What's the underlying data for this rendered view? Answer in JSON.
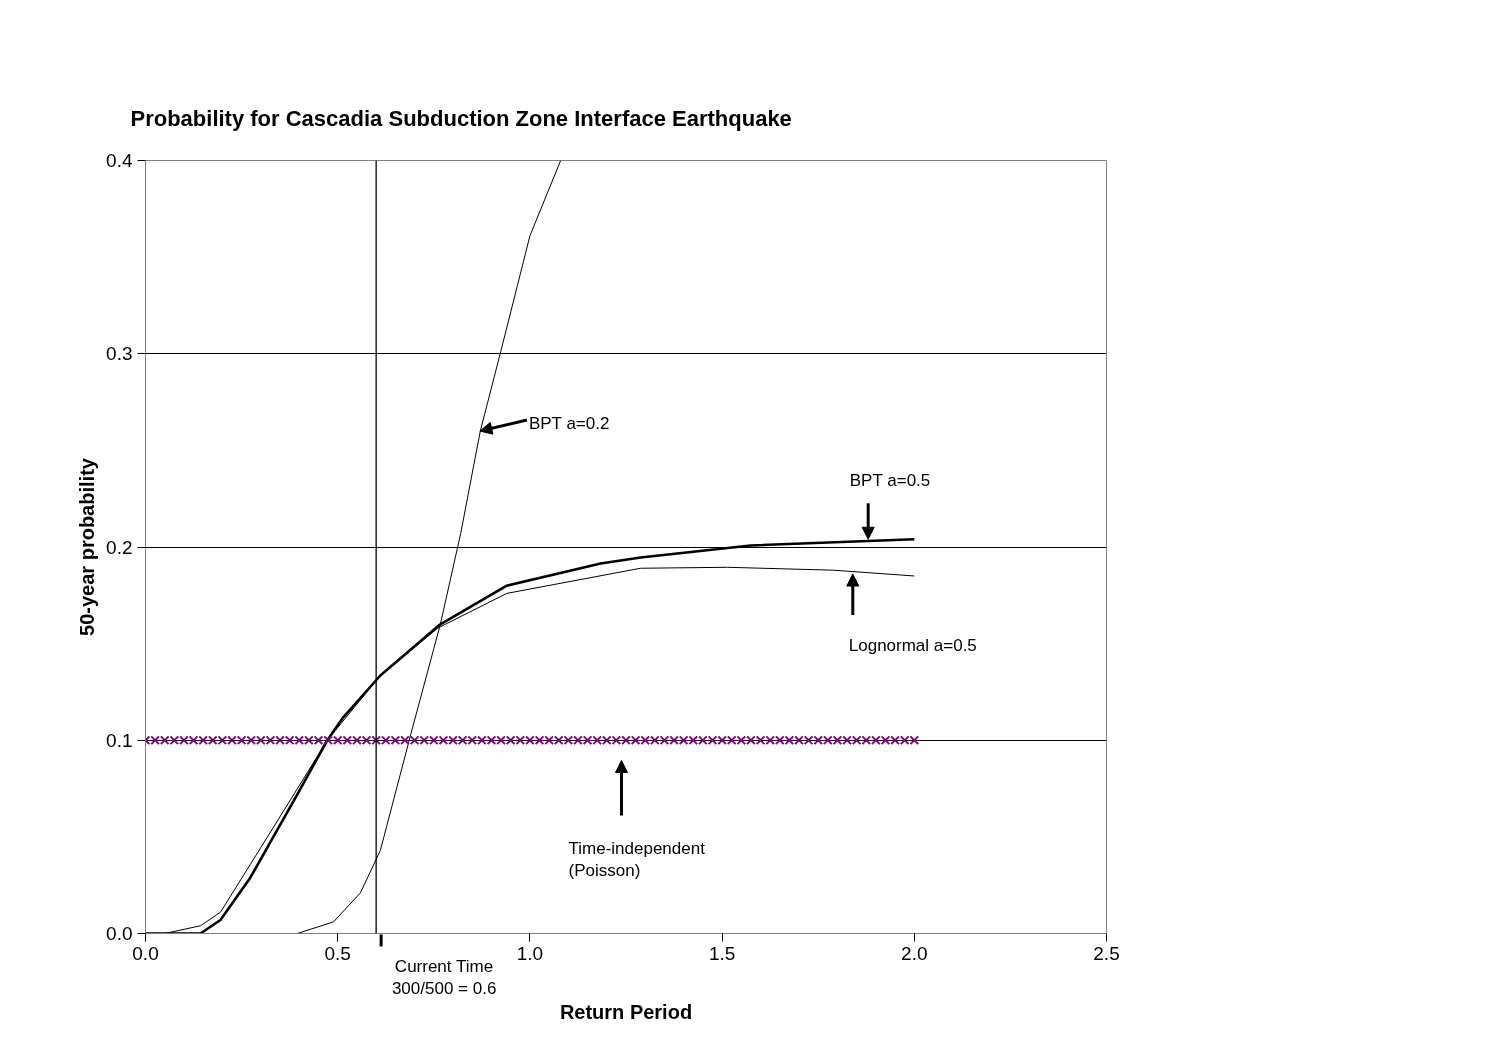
{
  "chart_data": {
    "type": "line",
    "title": "Probability for Cascadia Subduction Zone Interface Earthquake",
    "xlabel": "Return Period",
    "ylabel": "50-year probability",
    "xlim": [
      0,
      2.5
    ],
    "xticks": [
      {
        "value": 0,
        "label": "0.0"
      },
      0.5,
      {
        "value": 1,
        "label": "1.0"
      },
      1.5,
      {
        "value": 2,
        "label": "2.0"
      },
      2.5
    ],
    "ylim": [
      0,
      0.4
    ],
    "yticks": [
      {
        "value": 0,
        "label": "0.0"
      },
      0.1,
      0.2,
      0.3,
      0.4
    ],
    "grid": "y",
    "marker": "none",
    "line_style": "solid",
    "series": [
      {
        "color": "#000000",
        "x": [
          0.395,
          0.489,
          0.559,
          0.611,
          0.69,
          0.767,
          0.82,
          0.871,
          0.924,
          1.0,
          1.08
        ],
        "values": [
          0,
          0.006,
          0.021,
          0.043,
          0.103,
          0.16,
          0.207,
          0.26,
          0.301,
          0.361,
          0.4
        ]
      },
      {
        "color": "#000000",
        "x": [
          0,
          0.1,
          0.143,
          0.195,
          0.273,
          0.395,
          0.473,
          0.515,
          0.611,
          0.767,
          0.94,
          1.184,
          1.288,
          1.574,
          2.0
        ],
        "values": [
          0,
          0,
          0,
          0.007,
          0.029,
          0.072,
          0.1,
          0.112,
          0.1335,
          0.16,
          0.18,
          0.1915,
          0.1946,
          0.2008,
          0.204
        ]
      },
      {
        "color": "#000000",
        "x": [
          0,
          0.05,
          0.143,
          0.195,
          0.333,
          0.473,
          0.611,
          0.76,
          0.94,
          1.288,
          1.514,
          1.79,
          2.0
        ],
        "values": [
          0,
          0,
          0.004,
          0.011,
          0.055,
          0.1,
          0.1335,
          0.158,
          0.176,
          0.189,
          0.1895,
          0.188,
          0.185
        ]
      },
      {
        "type": "scatter",
        "color": "#800080",
        "marker": "cross",
        "x": [
          0,
          0.025,
          0.05,
          0.075,
          0.1,
          0.125,
          0.15,
          0.175,
          0.2,
          0.225,
          0.25,
          0.275,
          0.3,
          0.325,
          0.35,
          0.375,
          0.4,
          0.425,
          0.45,
          0.475,
          0.5,
          0.525,
          0.55,
          0.575,
          0.6,
          0.625,
          0.65,
          0.675,
          0.7,
          0.725,
          0.75,
          0.775,
          0.8,
          0.825,
          0.85,
          0.875,
          0.9,
          0.925,
          0.95,
          0.975,
          1.0,
          1.025,
          1.05,
          1.075,
          1.1,
          1.125,
          1.15,
          1.175,
          1.2,
          1.225,
          1.25,
          1.275,
          1.3,
          1.325,
          1.35,
          1.375,
          1.4,
          1.425,
          1.45,
          1.475,
          1.5,
          1.525,
          1.55,
          1.575,
          1.6,
          1.625,
          1.65,
          1.675,
          1.7,
          1.725,
          1.75,
          1.775,
          1.8,
          1.825,
          1.85,
          1.875,
          1.9,
          1.925,
          1.95,
          1.975,
          2.0
        ],
        "values": [
          0.1,
          0.1,
          0.1,
          0.1,
          0.1,
          0.1,
          0.1,
          0.1,
          0.1,
          0.1,
          0.1,
          0.1,
          0.1,
          0.1,
          0.1,
          0.1,
          0.1,
          0.1,
          0.1,
          0.1,
          0.1,
          0.1,
          0.1,
          0.1,
          0.1,
          0.1,
          0.1,
          0.1,
          0.1,
          0.1,
          0.1,
          0.1,
          0.1,
          0.1,
          0.1,
          0.1,
          0.1,
          0.1,
          0.1,
          0.1,
          0.1,
          0.1,
          0.1,
          0.1,
          0.1,
          0.1,
          0.1,
          0.1,
          0.1,
          0.1,
          0.1,
          0.1,
          0.1,
          0.1,
          0.1,
          0.1,
          0.1,
          0.1,
          0.1,
          0.1,
          0.1,
          0.1,
          0.1,
          0.1,
          0.1,
          0.1,
          0.1,
          0.1,
          0.1,
          0.1,
          0.1,
          0.1,
          0.1,
          0.1,
          0.1,
          0.1,
          0.1,
          0.1,
          0.1,
          0.1,
          0.1
        ]
      }
    ],
    "ref_lines": [
      {
        "axis": "x",
        "value": 0.6,
        "label": "Current Time\n300/500 = 0.6",
        "color": "#000000"
      }
    ],
    "annotations": [
      {
        "text": "BPT a=0.2",
        "x": 0.87,
        "y": 0.26
      },
      {
        "text": "BPT a=0.5",
        "x": 1.88,
        "y": 0.204
      },
      {
        "text": "Lognormal a=0.5",
        "x": 1.84,
        "y": 0.186
      },
      "Time-independent\n(Poisson)"
    ]
  }
}
